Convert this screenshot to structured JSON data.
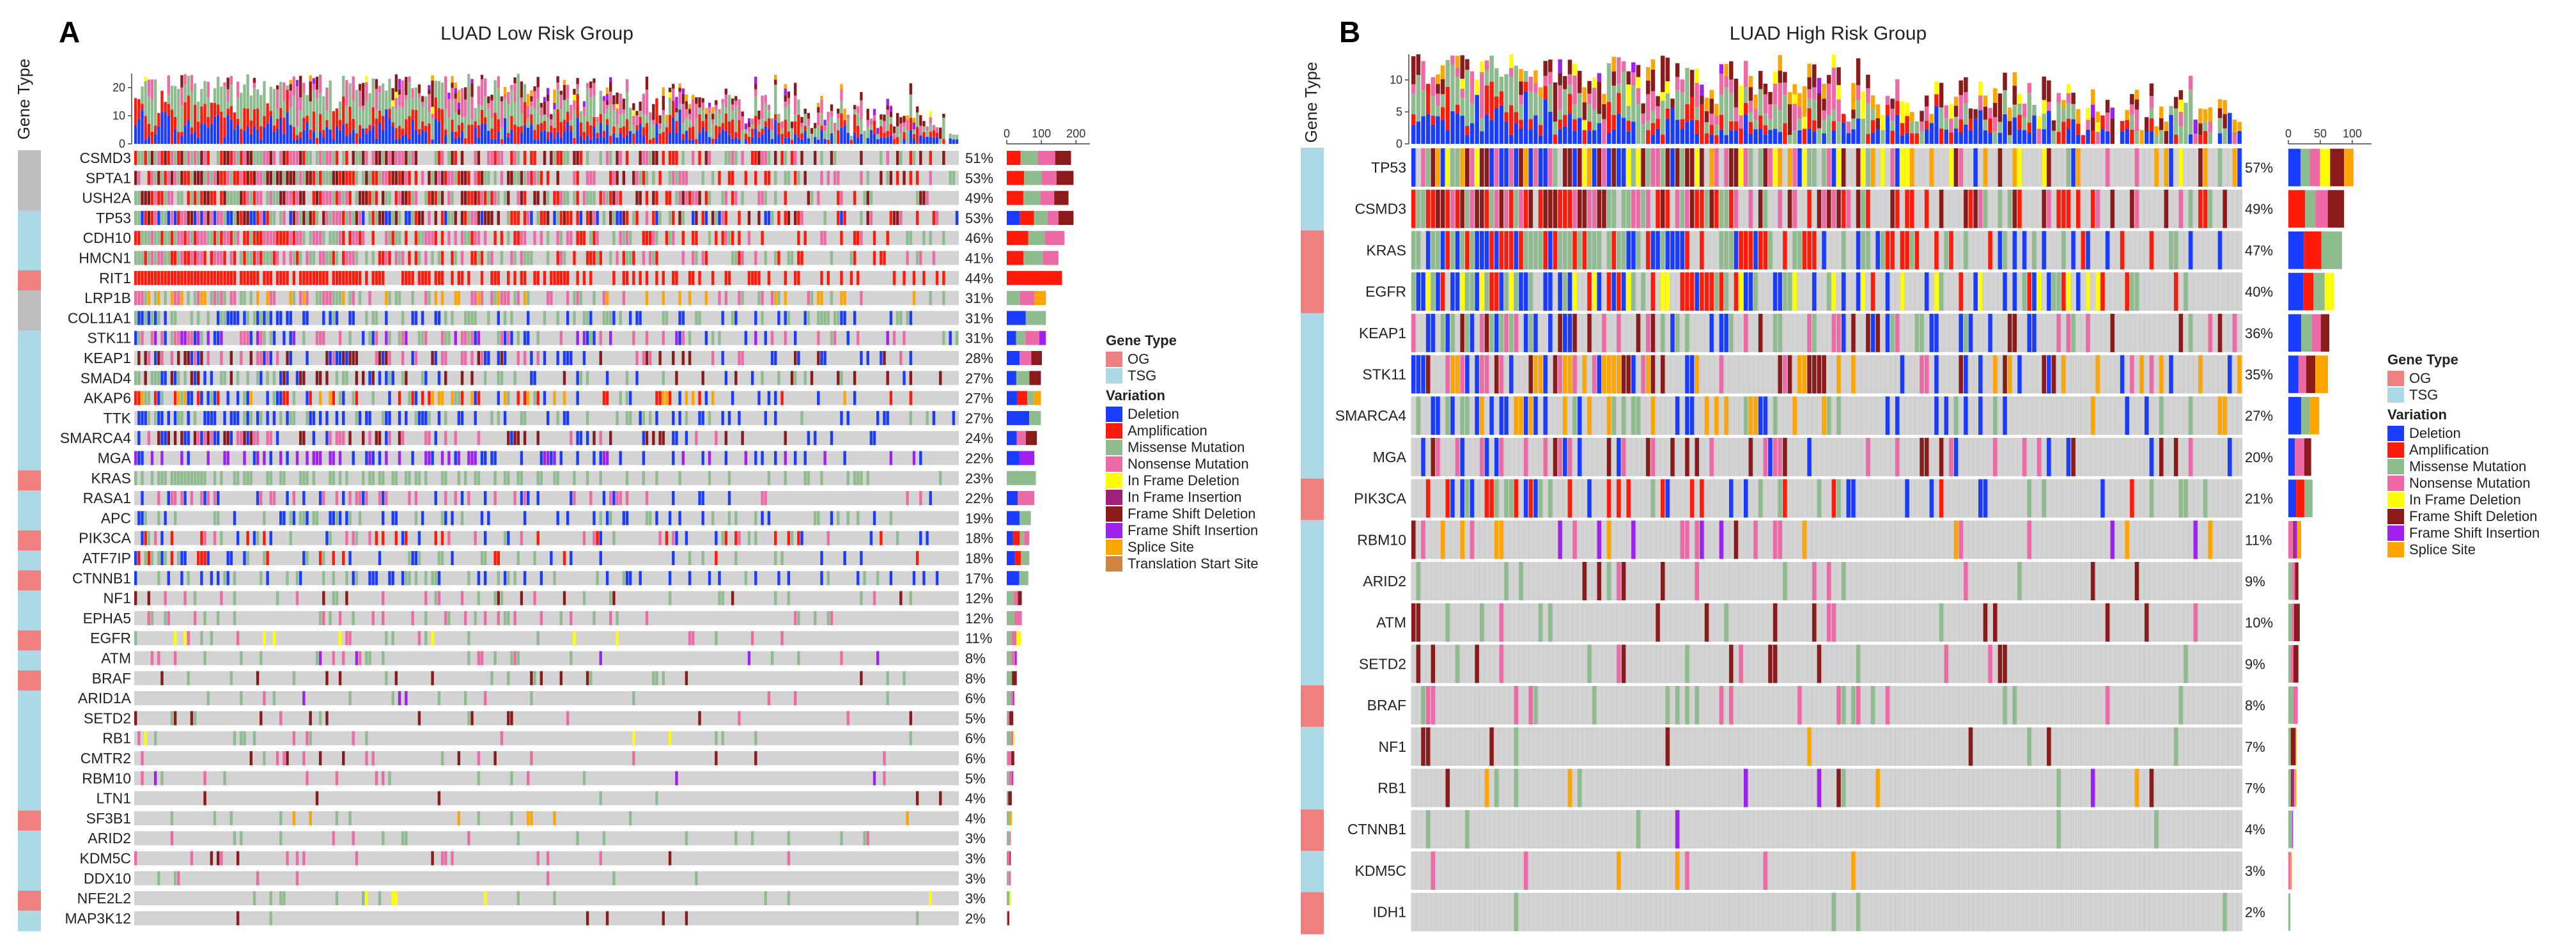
{
  "colors": {
    "og": "#f08080",
    "tsg": "#add8e6",
    "background_cell": "#d3d3d3",
    "variation": {
      "Deletion": "#1a3cff",
      "Amplification": "#ff1a0a",
      "Missense Mutation": "#8fbc8f",
      "Nonsense Mutation": "#ee6aa7",
      "In Frame Deletion": "#ffff00",
      "In Frame Insertion": "#a0207a",
      "Frame Shift Deletion": "#8b1a1a",
      "Frame Shift Insertion": "#a020f0",
      "Splice Site": "#ffa500",
      "Translation Start Site": "#cd853f"
    }
  },
  "chart_data": [
    {
      "type": "heatmap",
      "subtype": "oncoplot",
      "panel_letter": "A",
      "title": "LUAD Low Risk Group",
      "side_label": "Gene Type",
      "n_samples": 250,
      "top_bar": {
        "ylim": [
          0,
          25
        ],
        "ticks": [
          0,
          10,
          20
        ]
      },
      "right_bar": {
        "xlim": [
          0,
          240
        ],
        "ticks": [
          0,
          100,
          200
        ]
      },
      "legend_gene_type": {
        "title": "Gene Type",
        "items": [
          "OG",
          "TSG"
        ]
      },
      "legend_variation": {
        "title": "Variation",
        "items": [
          "Deletion",
          "Amplification",
          "Missense Mutation",
          "Nonsense Mutation",
          "In Frame Deletion",
          "In Frame Insertion",
          "Frame Shift Deletion",
          "Frame Shift Insertion",
          "Splice Site",
          "Translation Start Site"
        ]
      },
      "genes": [
        {
          "name": "CSMD3",
          "pct": "51%",
          "type": "none",
          "freq": 0.51,
          "mix": [
            "Amplification",
            "Missense Mutation",
            "Nonsense Mutation",
            "Frame Shift Deletion"
          ]
        },
        {
          "name": "SPTA1",
          "pct": "53%",
          "type": "none",
          "freq": 0.53,
          "mix": [
            "Amplification",
            "Missense Mutation",
            "Nonsense Mutation",
            "Frame Shift Deletion"
          ]
        },
        {
          "name": "USH2A",
          "pct": "49%",
          "type": "none",
          "freq": 0.49,
          "mix": [
            "Amplification",
            "Missense Mutation",
            "Nonsense Mutation",
            "Frame Shift Deletion"
          ]
        },
        {
          "name": "TP53",
          "pct": "53%",
          "type": "TSG",
          "freq": 0.53,
          "mix": [
            "Deletion",
            "Missense Mutation",
            "Nonsense Mutation",
            "Frame Shift Deletion",
            "Amplification"
          ]
        },
        {
          "name": "CDH10",
          "pct": "46%",
          "type": "TSG",
          "freq": 0.46,
          "mix": [
            "Amplification",
            "Missense Mutation",
            "Nonsense Mutation"
          ]
        },
        {
          "name": "HMCN1",
          "pct": "41%",
          "type": "TSG",
          "freq": 0.41,
          "mix": [
            "Amplification",
            "Missense Mutation",
            "Nonsense Mutation"
          ]
        },
        {
          "name": "RIT1",
          "pct": "44%",
          "type": "OG",
          "freq": 0.44,
          "mix": [
            "Amplification"
          ]
        },
        {
          "name": "LRP1B",
          "pct": "31%",
          "type": "none",
          "freq": 0.31,
          "mix": [
            "Missense Mutation",
            "Nonsense Mutation",
            "Splice Site"
          ]
        },
        {
          "name": "COL11A1",
          "pct": "31%",
          "type": "none",
          "freq": 0.31,
          "mix": [
            "Deletion",
            "Missense Mutation"
          ]
        },
        {
          "name": "STK11",
          "pct": "31%",
          "type": "TSG",
          "freq": 0.31,
          "mix": [
            "Deletion",
            "Frame Shift Insertion",
            "Nonsense Mutation",
            "Missense Mutation"
          ]
        },
        {
          "name": "KEAP1",
          "pct": "28%",
          "type": "TSG",
          "freq": 0.28,
          "mix": [
            "Deletion",
            "Nonsense Mutation",
            "Frame Shift Deletion"
          ]
        },
        {
          "name": "SMAD4",
          "pct": "27%",
          "type": "TSG",
          "freq": 0.27,
          "mix": [
            "Deletion",
            "Missense Mutation",
            "Frame Shift Deletion"
          ]
        },
        {
          "name": "AKAP6",
          "pct": "27%",
          "type": "TSG",
          "freq": 0.27,
          "mix": [
            "Amplification",
            "Deletion",
            "Missense Mutation",
            "Splice Site"
          ]
        },
        {
          "name": "TTK",
          "pct": "27%",
          "type": "TSG",
          "freq": 0.27,
          "mix": [
            "Deletion",
            "Missense Mutation"
          ]
        },
        {
          "name": "SMARCA4",
          "pct": "24%",
          "type": "TSG",
          "freq": 0.24,
          "mix": [
            "Deletion",
            "Nonsense Mutation",
            "Frame Shift Deletion"
          ]
        },
        {
          "name": "MGA",
          "pct": "22%",
          "type": "TSG",
          "freq": 0.22,
          "mix": [
            "Deletion",
            "Frame Shift Insertion"
          ]
        },
        {
          "name": "KRAS",
          "pct": "23%",
          "type": "OG",
          "freq": 0.23,
          "mix": [
            "Missense Mutation"
          ]
        },
        {
          "name": "RASA1",
          "pct": "22%",
          "type": "TSG",
          "freq": 0.22,
          "mix": [
            "Deletion",
            "Nonsense Mutation"
          ]
        },
        {
          "name": "APC",
          "pct": "19%",
          "type": "TSG",
          "freq": 0.19,
          "mix": [
            "Deletion",
            "Missense Mutation"
          ]
        },
        {
          "name": "PIK3CA",
          "pct": "18%",
          "type": "OG",
          "freq": 0.18,
          "mix": [
            "Deletion",
            "Amplification",
            "Missense Mutation",
            "Nonsense Mutation"
          ]
        },
        {
          "name": "ATF7IP",
          "pct": "18%",
          "type": "TSG",
          "freq": 0.18,
          "mix": [
            "Deletion",
            "Amplification",
            "Missense Mutation"
          ]
        },
        {
          "name": "CTNNB1",
          "pct": "17%",
          "type": "OG",
          "freq": 0.17,
          "mix": [
            "Deletion",
            "Missense Mutation"
          ]
        },
        {
          "name": "NF1",
          "pct": "12%",
          "type": "TSG",
          "freq": 0.12,
          "mix": [
            "Frame Shift Deletion",
            "Missense Mutation",
            "Nonsense Mutation"
          ]
        },
        {
          "name": "EPHA5",
          "pct": "12%",
          "type": "TSG",
          "freq": 0.12,
          "mix": [
            "Missense Mutation",
            "Nonsense Mutation"
          ]
        },
        {
          "name": "EGFR",
          "pct": "11%",
          "type": "OG",
          "freq": 0.11,
          "mix": [
            "In Frame Deletion",
            "Missense Mutation",
            "Nonsense Mutation"
          ]
        },
        {
          "name": "ATM",
          "pct": "8%",
          "type": "TSG",
          "freq": 0.08,
          "mix": [
            "Missense Mutation",
            "Nonsense Mutation",
            "Frame Shift Insertion"
          ]
        },
        {
          "name": "BRAF",
          "pct": "8%",
          "type": "OG",
          "freq": 0.08,
          "mix": [
            "Missense Mutation",
            "Frame Shift Deletion"
          ]
        },
        {
          "name": "ARID1A",
          "pct": "6%",
          "type": "TSG",
          "freq": 0.06,
          "mix": [
            "Missense Mutation",
            "Nonsense Mutation",
            "Frame Shift Insertion"
          ]
        },
        {
          "name": "SETD2",
          "pct": "5%",
          "type": "TSG",
          "freq": 0.05,
          "mix": [
            "Missense Mutation",
            "Nonsense Mutation",
            "Frame Shift Deletion"
          ]
        },
        {
          "name": "RB1",
          "pct": "6%",
          "type": "TSG",
          "freq": 0.06,
          "mix": [
            "Missense Mutation",
            "In Frame Deletion",
            "Nonsense Mutation"
          ]
        },
        {
          "name": "CMTR2",
          "pct": "6%",
          "type": "TSG",
          "freq": 0.06,
          "mix": [
            "Missense Mutation",
            "Nonsense Mutation",
            "Frame Shift Deletion"
          ]
        },
        {
          "name": "RBM10",
          "pct": "5%",
          "type": "TSG",
          "freq": 0.05,
          "mix": [
            "Frame Shift Insertion",
            "Nonsense Mutation",
            "Missense Mutation"
          ]
        },
        {
          "name": "LTN1",
          "pct": "4%",
          "type": "TSG",
          "freq": 0.04,
          "mix": [
            "Missense Mutation",
            "Frame Shift Deletion"
          ]
        },
        {
          "name": "SF3B1",
          "pct": "4%",
          "type": "OG",
          "freq": 0.04,
          "mix": [
            "Missense Mutation",
            "Splice Site"
          ]
        },
        {
          "name": "ARID2",
          "pct": "3%",
          "type": "TSG",
          "freq": 0.03,
          "mix": [
            "Missense Mutation",
            "Nonsense Mutation"
          ]
        },
        {
          "name": "KDM5C",
          "pct": "3%",
          "type": "TSG",
          "freq": 0.03,
          "mix": [
            "Frame Shift Deletion",
            "Nonsense Mutation"
          ]
        },
        {
          "name": "DDX10",
          "pct": "3%",
          "type": "TSG",
          "freq": 0.03,
          "mix": [
            "Nonsense Mutation",
            "Missense Mutation"
          ]
        },
        {
          "name": "NFE2L2",
          "pct": "3%",
          "type": "OG",
          "freq": 0.03,
          "mix": [
            "In Frame Deletion",
            "Missense Mutation"
          ]
        },
        {
          "name": "MAP3K12",
          "pct": "2%",
          "type": "TSG",
          "freq": 0.02,
          "mix": [
            "Frame Shift Deletion",
            "Missense Mutation"
          ]
        }
      ]
    },
    {
      "type": "heatmap",
      "subtype": "oncoplot",
      "panel_letter": "B",
      "title": "LUAD High Risk Group",
      "side_label": "Gene Type",
      "n_samples": 170,
      "top_bar": {
        "ylim": [
          0,
          14
        ],
        "ticks": [
          0,
          5,
          10
        ]
      },
      "right_bar": {
        "xlim": [
          0,
          130
        ],
        "ticks": [
          0,
          50,
          100
        ]
      },
      "legend_gene_type": {
        "title": "Gene Type",
        "items": [
          "OG",
          "TSG"
        ]
      },
      "legend_variation": {
        "title": "Variation",
        "items": [
          "Deletion",
          "Amplification",
          "Missense Mutation",
          "Nonsense Mutation",
          "In Frame Deletion",
          "Frame Shift Deletion",
          "Frame Shift Insertion",
          "Splice Site"
        ]
      },
      "genes": [
        {
          "name": "TP53",
          "pct": "57%",
          "type": "TSG",
          "freq": 0.57,
          "mix": [
            "Deletion",
            "Missense Mutation",
            "Nonsense Mutation",
            "Frame Shift Deletion",
            "Splice Site",
            "In Frame Deletion"
          ]
        },
        {
          "name": "CSMD3",
          "pct": "49%",
          "type": "TSG",
          "freq": 0.49,
          "mix": [
            "Amplification",
            "Missense Mutation",
            "Nonsense Mutation",
            "Frame Shift Deletion"
          ]
        },
        {
          "name": "KRAS",
          "pct": "47%",
          "type": "OG",
          "freq": 0.47,
          "mix": [
            "Missense Mutation",
            "Amplification",
            "Deletion"
          ]
        },
        {
          "name": "EGFR",
          "pct": "40%",
          "type": "OG",
          "freq": 0.4,
          "mix": [
            "Amplification",
            "In Frame Deletion",
            "Missense Mutation",
            "Deletion"
          ]
        },
        {
          "name": "KEAP1",
          "pct": "36%",
          "type": "TSG",
          "freq": 0.36,
          "mix": [
            "Deletion",
            "Missense Mutation",
            "Frame Shift Deletion",
            "Nonsense Mutation"
          ]
        },
        {
          "name": "STK11",
          "pct": "35%",
          "type": "TSG",
          "freq": 0.35,
          "mix": [
            "Deletion",
            "Frame Shift Deletion",
            "Nonsense Mutation",
            "Splice Site"
          ]
        },
        {
          "name": "SMARCA4",
          "pct": "27%",
          "type": "TSG",
          "freq": 0.27,
          "mix": [
            "Deletion",
            "Missense Mutation",
            "Splice Site"
          ]
        },
        {
          "name": "MGA",
          "pct": "20%",
          "type": "TSG",
          "freq": 0.2,
          "mix": [
            "Deletion",
            "Nonsense Mutation",
            "Frame Shift Deletion"
          ]
        },
        {
          "name": "PIK3CA",
          "pct": "21%",
          "type": "OG",
          "freq": 0.21,
          "mix": [
            "Amplification",
            "Deletion",
            "Missense Mutation"
          ]
        },
        {
          "name": "RBM10",
          "pct": "11%",
          "type": "TSG",
          "freq": 0.11,
          "mix": [
            "Frame Shift Deletion",
            "Nonsense Mutation",
            "Splice Site",
            "Frame Shift Insertion"
          ]
        },
        {
          "name": "ARID2",
          "pct": "9%",
          "type": "TSG",
          "freq": 0.09,
          "mix": [
            "Nonsense Mutation",
            "Frame Shift Deletion",
            "Missense Mutation"
          ]
        },
        {
          "name": "ATM",
          "pct": "10%",
          "type": "TSG",
          "freq": 0.1,
          "mix": [
            "Missense Mutation",
            "Frame Shift Deletion",
            "Nonsense Mutation"
          ]
        },
        {
          "name": "SETD2",
          "pct": "9%",
          "type": "TSG",
          "freq": 0.09,
          "mix": [
            "Missense Mutation",
            "Frame Shift Deletion",
            "Nonsense Mutation"
          ]
        },
        {
          "name": "BRAF",
          "pct": "8%",
          "type": "OG",
          "freq": 0.08,
          "mix": [
            "Missense Mutation",
            "Nonsense Mutation"
          ]
        },
        {
          "name": "NF1",
          "pct": "7%",
          "type": "TSG",
          "freq": 0.07,
          "mix": [
            "Splice Site",
            "Frame Shift Deletion",
            "Missense Mutation"
          ]
        },
        {
          "name": "RB1",
          "pct": "7%",
          "type": "TSG",
          "freq": 0.07,
          "mix": [
            "Frame Shift Deletion",
            "Frame Shift Insertion",
            "Splice Site",
            "Missense Mutation"
          ]
        },
        {
          "name": "CTNNB1",
          "pct": "4%",
          "type": "OG",
          "freq": 0.04,
          "mix": [
            "Missense Mutation",
            "Frame Shift Insertion"
          ]
        },
        {
          "name": "KDM5C",
          "pct": "3%",
          "type": "TSG",
          "freq": 0.03,
          "mix": [
            "Splice Site",
            "Nonsense Mutation"
          ]
        },
        {
          "name": "IDH1",
          "pct": "2%",
          "type": "OG",
          "freq": 0.02,
          "mix": [
            "Missense Mutation"
          ]
        }
      ]
    }
  ]
}
